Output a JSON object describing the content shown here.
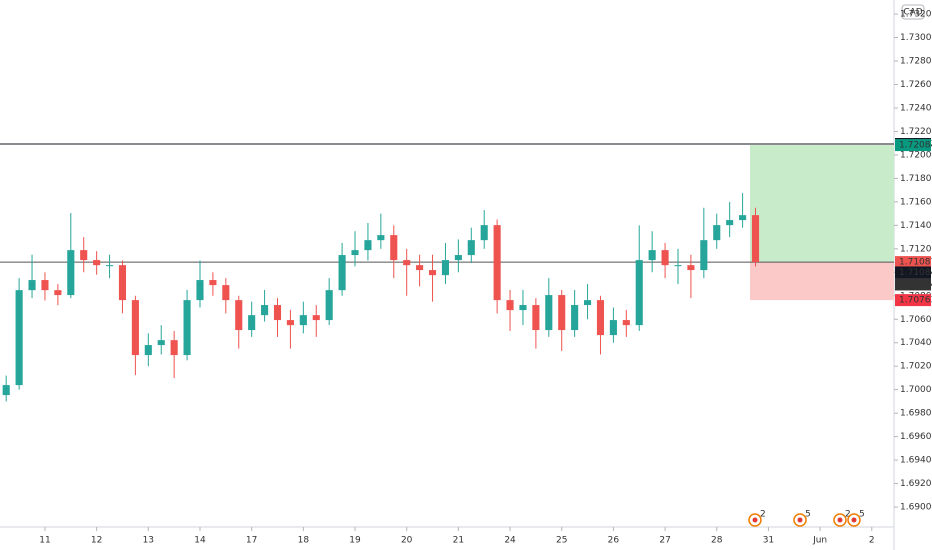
{
  "chart_data": {
    "type": "candlestick",
    "currency": "CAD",
    "x": [
      -0.75,
      -0.5,
      -0.25,
      0,
      0.25,
      0.5,
      0.75,
      1,
      1.25,
      1.5,
      1.75,
      2,
      2.25,
      2.5,
      2.75,
      3,
      3.25,
      3.5,
      3.75,
      4,
      4.25,
      4.5,
      4.75,
      5,
      5.25,
      5.5,
      5.75,
      6,
      6.25,
      6.5,
      6.75,
      7,
      7.25,
      7.5,
      7.75,
      8,
      8.25,
      8.5,
      8.75,
      9,
      9.25,
      9.5,
      9.75,
      10,
      10.25,
      10.5,
      10.75,
      11,
      11.25,
      11.5,
      11.75,
      12,
      12.25,
      12.5,
      12.75,
      13,
      13.25,
      13.5,
      13.75
    ],
    "open": [
      1.69954,
      1.70039,
      1.70848,
      1.70934,
      1.70848,
      1.70806,
      1.71189,
      1.71104,
      1.71061,
      1.71061,
      1.70763,
      1.70295,
      1.7038,
      1.70422,
      1.70295,
      1.70763,
      1.70934,
      1.70891,
      1.70763,
      1.70508,
      1.70635,
      1.70721,
      1.70593,
      1.7055,
      1.70635,
      1.70593,
      1.70848,
      1.71147,
      1.71189,
      1.71274,
      1.71317,
      1.71104,
      1.71061,
      1.71019,
      1.70976,
      1.71104,
      1.71147,
      1.71274,
      1.71402,
      1.70763,
      1.70678,
      1.70721,
      1.70508,
      1.70806,
      1.70508,
      1.70721,
      1.70763,
      1.70465,
      1.70593,
      1.7055,
      1.71104,
      1.71189,
      1.71061,
      1.71061,
      1.71019,
      1.71274,
      1.71402,
      1.71445,
      1.71487
    ],
    "high": [
      1.7012,
      1.7095,
      1.7115,
      1.71,
      1.709,
      1.71505,
      1.713,
      1.7118,
      1.7115,
      1.711,
      1.708,
      1.7048,
      1.7055,
      1.705,
      1.7085,
      1.711,
      1.71,
      1.7095,
      1.708,
      1.7075,
      1.7085,
      1.7078,
      1.7068,
      1.7075,
      1.7072,
      1.7095,
      1.7125,
      1.7135,
      1.7142,
      1.715,
      1.714,
      1.712,
      1.7115,
      1.7115,
      1.7125,
      1.7128,
      1.7138,
      1.7153,
      1.7145,
      1.7085,
      1.7085,
      1.7078,
      1.7095,
      1.7085,
      1.7085,
      1.709,
      1.708,
      1.707,
      1.7068,
      1.714,
      1.7135,
      1.7125,
      1.712,
      1.7115,
      1.7155,
      1.715,
      1.716,
      1.71675,
      1.7155
    ],
    "low": [
      1.699,
      1.7,
      1.7078,
      1.7076,
      1.7072,
      1.7078,
      1.71,
      1.7098,
      1.7095,
      1.7065,
      1.70124,
      1.702,
      1.703,
      1.70099,
      1.7025,
      1.707,
      1.708,
      1.7065,
      1.7035,
      1.7045,
      1.7058,
      1.7045,
      1.7035,
      1.7048,
      1.7045,
      1.7055,
      1.708,
      1.7105,
      1.711,
      1.712,
      1.7095,
      1.708,
      1.7088,
      1.7075,
      1.709,
      1.71,
      1.7108,
      1.712,
      1.7065,
      1.705,
      1.7055,
      1.7035,
      1.7045,
      1.7033,
      1.7045,
      1.706,
      1.703,
      1.704,
      1.7045,
      1.705,
      1.71,
      1.7095,
      1.709,
      1.7078,
      1.7095,
      1.712,
      1.713,
      1.7138,
      1.7105
    ],
    "close": [
      1.70039,
      1.70848,
      1.70934,
      1.70848,
      1.70806,
      1.71189,
      1.71104,
      1.71061,
      1.71061,
      1.70763,
      1.70295,
      1.7038,
      1.70422,
      1.70295,
      1.70763,
      1.70934,
      1.70891,
      1.70763,
      1.70508,
      1.70635,
      1.70721,
      1.70593,
      1.7055,
      1.70635,
      1.70593,
      1.70848,
      1.71147,
      1.71189,
      1.71274,
      1.71317,
      1.71104,
      1.71061,
      1.71019,
      1.70976,
      1.71104,
      1.71147,
      1.71274,
      1.71402,
      1.70763,
      1.70678,
      1.70721,
      1.70508,
      1.70806,
      1.70508,
      1.70721,
      1.70763,
      1.70465,
      1.70593,
      1.7055,
      1.71104,
      1.71189,
      1.71061,
      1.71061,
      1.71019,
      1.71274,
      1.71402,
      1.71445,
      1.71487,
      1.71087
    ],
    "up_color": "#26a69a",
    "down_color": "#ef5350",
    "xlim": [
      -0.87,
      16.43
    ],
    "ylim": [
      1.6883,
      1.7332
    ],
    "xticks": [
      {
        "value": 0,
        "label": "11"
      },
      {
        "value": 1,
        "label": "12"
      },
      {
        "value": 2,
        "label": "13"
      },
      {
        "value": 3,
        "label": "14"
      },
      {
        "value": 4,
        "label": "17"
      },
      {
        "value": 5,
        "label": "18"
      },
      {
        "value": 6,
        "label": "19"
      },
      {
        "value": 7,
        "label": "20"
      },
      {
        "value": 8,
        "label": "21"
      },
      {
        "value": 9,
        "label": "24"
      },
      {
        "value": 10,
        "label": "25"
      },
      {
        "value": 11,
        "label": "26"
      },
      {
        "value": 12,
        "label": "27"
      },
      {
        "value": 13,
        "label": "28"
      },
      {
        "value": 14,
        "label": "31"
      },
      {
        "value": 15,
        "label": "Jun"
      },
      {
        "value": 16,
        "label": "2"
      }
    ],
    "yticks": [
      {
        "value": 1.69,
        "label": "1.69000"
      },
      {
        "value": 1.692,
        "label": "1.69200"
      },
      {
        "value": 1.694,
        "label": "1.69400"
      },
      {
        "value": 1.696,
        "label": "1.69600"
      },
      {
        "value": 1.698,
        "label": "1.69800"
      },
      {
        "value": 1.7,
        "label": "1.70000"
      },
      {
        "value": 1.702,
        "label": "1.70200"
      },
      {
        "value": 1.704,
        "label": "1.70400"
      },
      {
        "value": 1.706,
        "label": "1.70600"
      },
      {
        "value": 1.708,
        "label": "1.70800"
      },
      {
        "value": 1.71,
        "label": "1.71000"
      },
      {
        "value": 1.712,
        "label": "1.71200"
      },
      {
        "value": 1.714,
        "label": "1.71400"
      },
      {
        "value": 1.716,
        "label": "1.71600"
      },
      {
        "value": 1.718,
        "label": "1.71800"
      },
      {
        "value": 1.72,
        "label": "1.72000"
      },
      {
        "value": 1.722,
        "label": "1.72200"
      },
      {
        "value": 1.724,
        "label": "1.72400"
      },
      {
        "value": 1.726,
        "label": "1.72600"
      },
      {
        "value": 1.728,
        "label": "1.72800"
      },
      {
        "value": 1.73,
        "label": "1.73000"
      },
      {
        "value": 1.732,
        "label": "1.73200"
      }
    ],
    "hlines": [
      {
        "value": 1.72093,
        "color": "#131722"
      },
      {
        "value": 1.71087,
        "color": "#555555"
      }
    ],
    "position": {
      "target": 1.72084,
      "entry": 1.71087,
      "stop": 1.70763,
      "target_color": "#c8ebc9",
      "stop_color": "#fcc9c9"
    },
    "price_labels": [
      {
        "value": 1.72093,
        "color": "#131722"
      },
      {
        "value": 1.72084,
        "color": "#089981"
      },
      {
        "value": 1.71087,
        "color": "#ef5350",
        "countdown": "02:41"
      },
      {
        "value": 1.71084,
        "color": "#131722"
      },
      {
        "value": 1.71084,
        "color": "#333333"
      },
      {
        "value": 1.70763,
        "color": "#f23645"
      }
    ],
    "events": [
      2,
      5,
      2,
      5
    ]
  }
}
